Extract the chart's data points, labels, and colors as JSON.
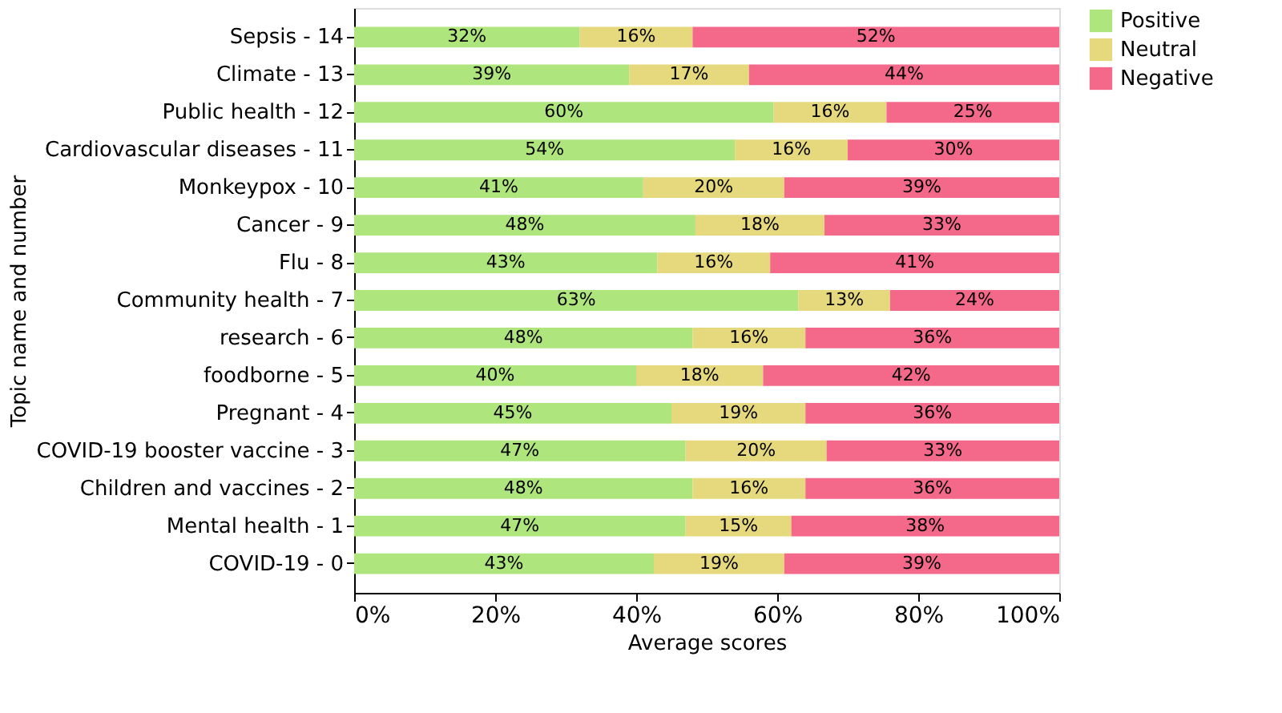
{
  "chart_data": {
    "type": "bar",
    "orientation": "horizontal",
    "stacked": true,
    "xlabel": "Average scores",
    "ylabel": "Topic name and number",
    "categories": [
      "Sepsis - 14",
      "Climate - 13",
      "Public health - 12",
      "Cardiovascular diseases - 11",
      "Monkeypox - 10",
      "Cancer - 9",
      "Flu - 8",
      "Community health - 7",
      "research - 6",
      "foodborne - 5",
      "Pregnant - 4",
      "COVID-19 booster vaccine - 3",
      "Children and vaccines - 2",
      "Mental health - 1",
      "COVID-19 - 0"
    ],
    "series": [
      {
        "name": "Positive",
        "color": "#aee57d",
        "values": [
          32,
          39,
          59.5,
          54,
          41,
          48.4,
          43,
          63,
          48,
          40,
          45,
          47,
          48,
          47,
          42.5
        ],
        "value_labels": [
          "32%",
          "39%",
          "60%",
          "54%",
          "41%",
          "48%",
          "43%",
          "63%",
          "48%",
          "40%",
          "45%",
          "47%",
          "48%",
          "47%",
          "43%"
        ]
      },
      {
        "name": "Neutral",
        "color": "#e5d87d",
        "values": [
          16,
          17,
          16,
          16,
          20,
          18.3,
          16,
          13,
          16,
          18,
          19,
          20,
          16,
          15,
          18.5
        ],
        "value_labels": [
          "16%",
          "17%",
          "16%",
          "16%",
          "20%",
          "18%",
          "16%",
          "13%",
          "16%",
          "18%",
          "19%",
          "20%",
          "16%",
          "15%",
          "19%"
        ]
      },
      {
        "name": "Negative",
        "color": "#f4698a",
        "values": [
          52,
          44,
          24.5,
          30,
          39,
          33.3,
          41,
          24,
          36,
          42,
          36,
          33,
          36,
          38,
          39
        ],
        "value_labels": [
          "52%",
          "44%",
          "25%",
          "30%",
          "39%",
          "33%",
          "41%",
          "24%",
          "36%",
          "42%",
          "36%",
          "33%",
          "36%",
          "38%",
          "39%"
        ]
      }
    ],
    "xlim": [
      0,
      100
    ],
    "xticks": [
      {
        "value": 0,
        "label": "0%"
      },
      {
        "value": 20,
        "label": "20%"
      },
      {
        "value": 40,
        "label": "40%"
      },
      {
        "value": 60,
        "label": "60%"
      },
      {
        "value": 80,
        "label": "80%"
      },
      {
        "value": 100,
        "label": "100%"
      }
    ],
    "legend": "top right",
    "grid": false
  }
}
